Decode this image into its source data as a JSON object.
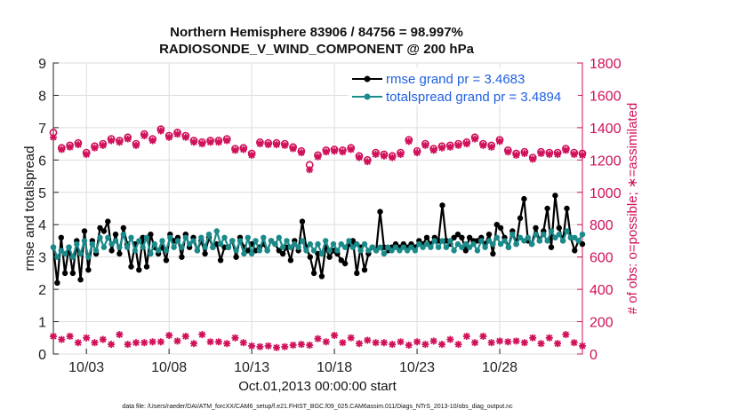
{
  "chart_data": {
    "type": "line",
    "title": "Northern Hemisphere 83906 / 84756 = 98.997%",
    "subtitle": "RADIOSONDE_V_WIND_COMPONENT @ 200 hPa",
    "xlabel": "Oct.01,2013 00:00:00 start",
    "ylabel_left": "rmse and totalspread",
    "ylabel_right": "# of obs: o=possible; ∗=assimilated",
    "footnote": "data file: /Users/raeder/DAI/ATM_forcXX/CAM6_setup/f.e21.FHIST_BGC.f09_025.CAM6assim.011/Diags_NTrS_2013-10/obs_diag_output.nc",
    "xlim": [
      1,
      33
    ],
    "ylim_left": [
      0,
      9
    ],
    "ylim_right": [
      0,
      1800
    ],
    "x_ticks": [
      3,
      8,
      13,
      18,
      23,
      28
    ],
    "x_tick_labels": [
      "10/03",
      "10/08",
      "10/13",
      "10/18",
      "10/23",
      "10/28"
    ],
    "y_ticks_left": [
      "0",
      "1",
      "2",
      "3",
      "4",
      "5",
      "6",
      "7",
      "8",
      "9"
    ],
    "y_ticks_right": [
      "0",
      "200",
      "400",
      "600",
      "800",
      "1000",
      "1200",
      "1400",
      "1600",
      "1800"
    ],
    "colors": {
      "rmse": "#000000",
      "spread": "#1a8a8a",
      "obs": "#d0105a",
      "legend_text": "#2060e0"
    },
    "series": [
      {
        "name": "rmse grand pr = 3.4683",
        "values": [
          3.3,
          2.2,
          3.6,
          2.5,
          3.3,
          2.5,
          3.5,
          2.3,
          3.8,
          2.6,
          3.5,
          3.1,
          3.9,
          3.8,
          4.1,
          3.2,
          3.7,
          3.1,
          3.9,
          3.4,
          2.7,
          3.4,
          2.6,
          3.6,
          2.7,
          3.7,
          3.3,
          3.1,
          3.3,
          2.9,
          3.7,
          3.5,
          3.6,
          3.0,
          3.7,
          3.3,
          3.6,
          3.2,
          3.5,
          3.1,
          3.6,
          3.3,
          3.4,
          2.9,
          3.3,
          3.3,
          3.5,
          3.0,
          3.6,
          3.3,
          3.2,
          3.4,
          3.2,
          3.3,
          3.4,
          3.2,
          3.5,
          3.4,
          3.2,
          3.1,
          3.3,
          2.9,
          3.5,
          3.2,
          4.1,
          3.3,
          3.0,
          2.5,
          3.1,
          2.4,
          3.3,
          3.0,
          3.2,
          3.1,
          2.9,
          2.8,
          3.4,
          3.5,
          2.5,
          3.3,
          2.6,
          3.1,
          3.3,
          3.2,
          4.4,
          3.3,
          3.2,
          3.3,
          3.4,
          3.3,
          3.4,
          3.3,
          3.4,
          3.3,
          3.5,
          3.4,
          3.6,
          3.4,
          3.6,
          3.5,
          4.6,
          3.5,
          3.4,
          3.6,
          3.7,
          3.6,
          3.2,
          3.6,
          3.5,
          3.5,
          3.6,
          3.4,
          3.7,
          3.1,
          4.0,
          3.9,
          3.6,
          3.3,
          3.8,
          3.4,
          4.2,
          4.8,
          3.5,
          3.4,
          3.9,
          3.5,
          3.8,
          4.5,
          3.3,
          4.9,
          3.9,
          3.5,
          4.5,
          3.6,
          3.2,
          3.5,
          3.4
        ]
      },
      {
        "name": "totalspread grand pr = 3.4894",
        "values": [
          3.3,
          3.0,
          3.2,
          3.1,
          3.3,
          3.0,
          3.4,
          3.1,
          3.5,
          3.0,
          3.4,
          3.2,
          3.6,
          3.3,
          3.6,
          3.4,
          3.5,
          3.3,
          3.7,
          3.3,
          3.6,
          3.2,
          3.5,
          3.3,
          3.6,
          3.1,
          3.4,
          3.2,
          3.5,
          3.2,
          3.6,
          3.3,
          3.5,
          3.3,
          3.6,
          3.4,
          3.5,
          3.2,
          3.6,
          3.3,
          3.7,
          3.3,
          3.8,
          3.4,
          3.6,
          3.3,
          3.5,
          3.2,
          3.5,
          3.1,
          3.6,
          3.1,
          3.5,
          3.2,
          3.6,
          3.2,
          3.5,
          3.4,
          3.6,
          3.3,
          3.5,
          3.3,
          3.4,
          3.3,
          3.5,
          3.2,
          3.4,
          3.2,
          3.4,
          3.1,
          3.5,
          3.2,
          3.4,
          3.2,
          3.4,
          3.3,
          3.5,
          3.3,
          3.4,
          3.2,
          3.4,
          3.2,
          3.3,
          3.2,
          3.3,
          3.1,
          3.3,
          3.2,
          3.3,
          3.2,
          3.3,
          3.2,
          3.3,
          3.2,
          3.4,
          3.3,
          3.4,
          3.3,
          3.5,
          3.3,
          3.5,
          3.3,
          3.5,
          3.2,
          3.4,
          3.3,
          3.4,
          3.3,
          3.4,
          3.2,
          3.5,
          3.3,
          3.5,
          3.4,
          3.6,
          3.4,
          3.5,
          3.3,
          3.7,
          3.4,
          3.6,
          3.5,
          3.6,
          3.4,
          3.7,
          3.5,
          3.7,
          3.5,
          3.8,
          3.6,
          3.7,
          3.5,
          3.8,
          3.6,
          3.6,
          3.5,
          3.7
        ]
      },
      {
        "name": "obs possible",
        "axis": "right",
        "marker": "o",
        "x": [
          1,
          1.5,
          2,
          2.5,
          3,
          3.5,
          4,
          4.5,
          5,
          5.5,
          6,
          6.5,
          7,
          7.5,
          8,
          8.5,
          9,
          9.5,
          10,
          10.5,
          11,
          11.5,
          12,
          12.5,
          13,
          13.5,
          14,
          14.5,
          15,
          15.5,
          16,
          16.5,
          17,
          17.5,
          18,
          18.5,
          19,
          19.5,
          20,
          20.5,
          21,
          21.5,
          22,
          22.5,
          23,
          23.5,
          24,
          24.5,
          25,
          25.5,
          26,
          26.5,
          27,
          27.5,
          28,
          28.5,
          29,
          29.5,
          30,
          30.5,
          31,
          31.5,
          32,
          32.5,
          33
        ],
        "values": [
          1370,
          1275,
          1290,
          1305,
          1245,
          1285,
          1300,
          1330,
          1320,
          1340,
          1300,
          1360,
          1330,
          1390,
          1350,
          1370,
          1350,
          1320,
          1310,
          1320,
          1320,
          1330,
          1270,
          1275,
          1240,
          1310,
          1305,
          1305,
          1300,
          1280,
          1255,
          1170,
          1230,
          1260,
          1265,
          1260,
          1275,
          1225,
          1200,
          1245,
          1235,
          1225,
          1245,
          1325,
          1255,
          1300,
          1270,
          1285,
          1290,
          1300,
          1310,
          1340,
          1300,
          1290,
          1325,
          1260,
          1240,
          1250,
          1215,
          1250,
          1245,
          1245,
          1270,
          1245,
          1240
        ]
      },
      {
        "name": "obs assimilated",
        "axis": "right",
        "marker": "*",
        "x": [
          1,
          1.5,
          2,
          2.5,
          3,
          3.5,
          4,
          4.5,
          5,
          5.5,
          6,
          6.5,
          7,
          7.5,
          8,
          8.5,
          9,
          9.5,
          10,
          10.5,
          11,
          11.5,
          12,
          12.5,
          13,
          13.5,
          14,
          14.5,
          15,
          15.5,
          16,
          16.5,
          17,
          17.5,
          18,
          18.5,
          19,
          19.5,
          20,
          20.5,
          21,
          21.5,
          22,
          22.5,
          23,
          23.5,
          24,
          24.5,
          25,
          25.5,
          26,
          26.5,
          27,
          27.5,
          28,
          28.5,
          29,
          29.5,
          30,
          30.5,
          31,
          31.5,
          32,
          32.5,
          33
        ],
        "values": [
          1340,
          1265,
          1280,
          1295,
          1235,
          1275,
          1290,
          1320,
          1310,
          1330,
          1290,
          1350,
          1320,
          1380,
          1340,
          1360,
          1340,
          1310,
          1300,
          1310,
          1310,
          1320,
          1260,
          1265,
          1230,
          1300,
          1295,
          1295,
          1290,
          1270,
          1245,
          1140,
          1220,
          1250,
          1255,
          1250,
          1265,
          1215,
          1190,
          1235,
          1225,
          1215,
          1235,
          1315,
          1245,
          1290,
          1260,
          1275,
          1280,
          1290,
          1300,
          1330,
          1290,
          1280,
          1315,
          1250,
          1230,
          1240,
          1205,
          1240,
          1235,
          1235,
          1260,
          1235,
          1230
        ]
      },
      {
        "name": "obs bottom",
        "axis": "right",
        "marker": "*",
        "x": [
          1,
          1.5,
          2,
          2.5,
          3,
          3.5,
          4,
          4.5,
          5,
          5.5,
          6,
          6.5,
          7,
          7.5,
          8,
          8.5,
          9,
          9.5,
          10,
          10.5,
          11,
          11.5,
          12,
          12.5,
          13,
          13.5,
          14,
          14.5,
          15,
          15.5,
          16,
          16.5,
          17,
          17.5,
          18,
          18.5,
          19,
          19.5,
          20,
          20.5,
          21,
          21.5,
          22,
          22.5,
          23,
          23.5,
          24,
          24.5,
          25,
          25.5,
          26,
          26.5,
          27,
          27.5,
          28,
          28.5,
          29,
          29.5,
          30,
          30.5,
          31,
          31.5,
          32,
          32.5,
          33
        ],
        "values": [
          110,
          90,
          110,
          70,
          100,
          70,
          90,
          60,
          120,
          60,
          70,
          70,
          75,
          75,
          115,
          80,
          110,
          65,
          120,
          75,
          75,
          65,
          100,
          70,
          50,
          45,
          50,
          40,
          45,
          55,
          60,
          55,
          95,
          75,
          115,
          70,
          100,
          65,
          85,
          70,
          70,
          60,
          75,
          55,
          75,
          60,
          80,
          60,
          90,
          60,
          110,
          70,
          110,
          70,
          80,
          75,
          80,
          70,
          100,
          65,
          100,
          65,
          120,
          70,
          50
        ]
      }
    ]
  },
  "legend": {
    "rmse_label": "rmse grand pr = 3.4683",
    "spread_label": "totalspread grand pr = 3.4894"
  }
}
